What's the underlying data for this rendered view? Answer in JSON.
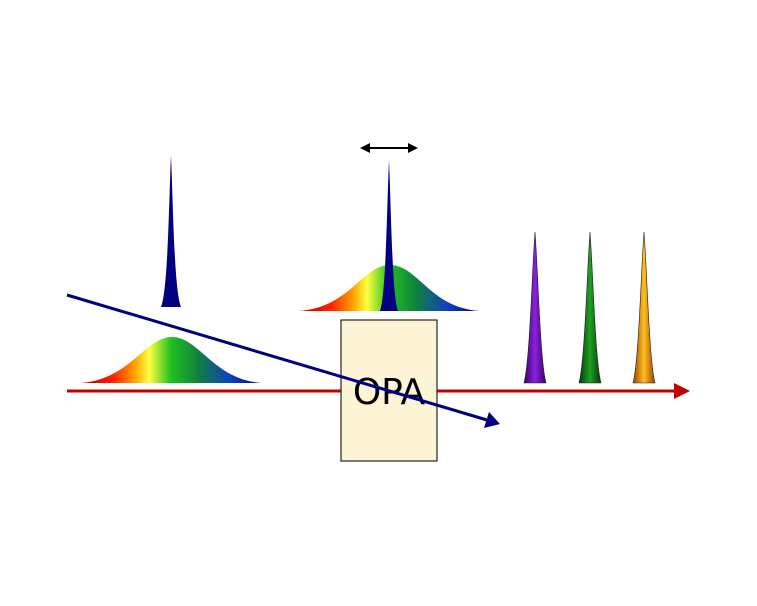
{
  "box": {
    "label": "OPA"
  }
}
